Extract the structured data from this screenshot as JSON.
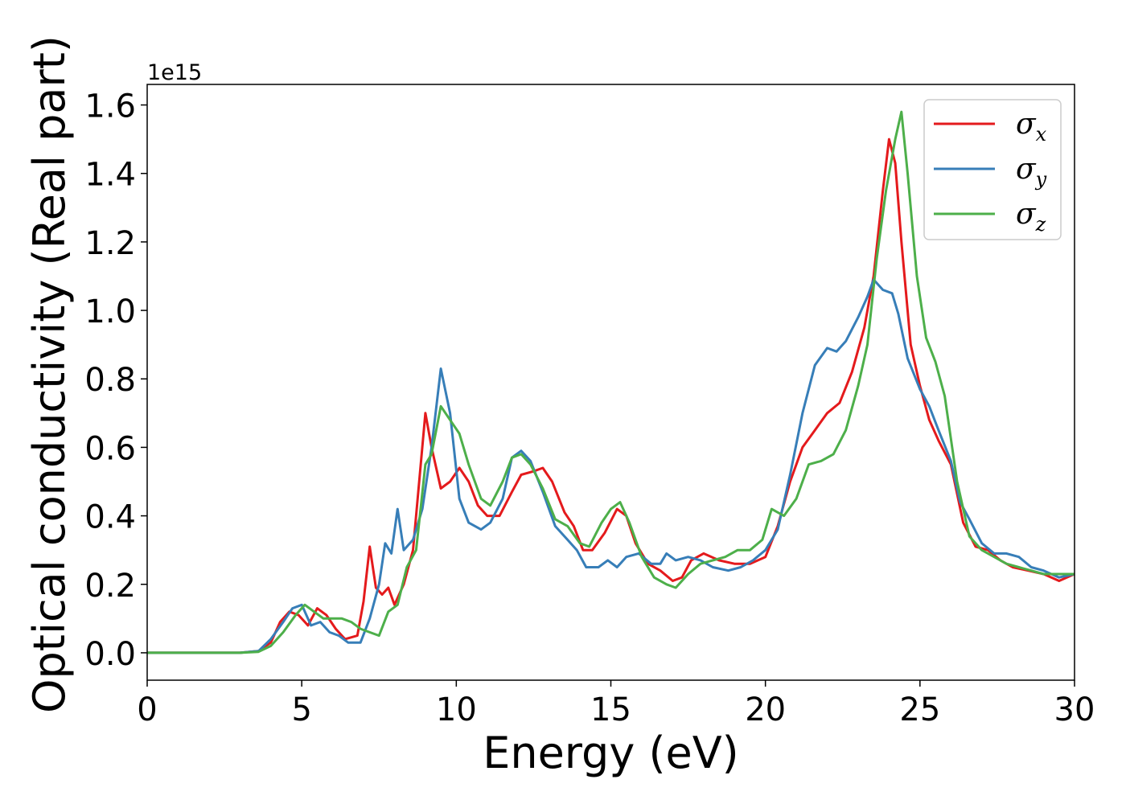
{
  "chart_data": {
    "type": "line",
    "title": "",
    "xlabel": "Energy (eV)",
    "ylabel": "Optical conductivity (Real part)",
    "y_offset_label": "1e15",
    "xlim": [
      0,
      30
    ],
    "ylim": [
      -0.08,
      1.66
    ],
    "x_ticks": [
      0,
      5,
      10,
      15,
      20,
      25,
      30
    ],
    "x_tick_labels": [
      "0",
      "5",
      "10",
      "15",
      "20",
      "25",
      "30"
    ],
    "y_ticks": [
      0.0,
      0.2,
      0.4,
      0.6,
      0.8,
      1.0,
      1.2,
      1.4,
      1.6
    ],
    "y_tick_labels": [
      "0.0",
      "0.2",
      "0.4",
      "0.6",
      "0.8",
      "1.0",
      "1.2",
      "1.4",
      "1.6"
    ],
    "grid": false,
    "legend_position": "top-right",
    "series": [
      {
        "name": "σx",
        "symbol": "σ",
        "subscript": "x",
        "color": "#e41a1c",
        "points": [
          [
            0,
            0
          ],
          [
            3,
            0
          ],
          [
            3.6,
            0.005
          ],
          [
            4,
            0.03
          ],
          [
            4.3,
            0.09
          ],
          [
            4.6,
            0.12
          ],
          [
            4.9,
            0.11
          ],
          [
            5.2,
            0.08
          ],
          [
            5.5,
            0.13
          ],
          [
            5.8,
            0.11
          ],
          [
            6.1,
            0.07
          ],
          [
            6.4,
            0.04
          ],
          [
            6.8,
            0.05
          ],
          [
            7.0,
            0.15
          ],
          [
            7.2,
            0.31
          ],
          [
            7.4,
            0.19
          ],
          [
            7.6,
            0.17
          ],
          [
            7.8,
            0.19
          ],
          [
            8.0,
            0.14
          ],
          [
            8.3,
            0.2
          ],
          [
            8.6,
            0.3
          ],
          [
            8.8,
            0.5
          ],
          [
            9.0,
            0.7
          ],
          [
            9.2,
            0.6
          ],
          [
            9.5,
            0.48
          ],
          [
            9.8,
            0.5
          ],
          [
            10.1,
            0.54
          ],
          [
            10.4,
            0.5
          ],
          [
            10.7,
            0.43
          ],
          [
            11.0,
            0.4
          ],
          [
            11.4,
            0.4
          ],
          [
            11.8,
            0.47
          ],
          [
            12.1,
            0.52
          ],
          [
            12.5,
            0.53
          ],
          [
            12.8,
            0.54
          ],
          [
            13.1,
            0.5
          ],
          [
            13.5,
            0.41
          ],
          [
            13.8,
            0.37
          ],
          [
            14.1,
            0.3
          ],
          [
            14.4,
            0.3
          ],
          [
            14.8,
            0.35
          ],
          [
            15.2,
            0.42
          ],
          [
            15.5,
            0.4
          ],
          [
            15.8,
            0.32
          ],
          [
            16.2,
            0.26
          ],
          [
            16.6,
            0.24
          ],
          [
            17.0,
            0.21
          ],
          [
            17.3,
            0.22
          ],
          [
            17.6,
            0.27
          ],
          [
            18.0,
            0.29
          ],
          [
            18.5,
            0.27
          ],
          [
            19.0,
            0.26
          ],
          [
            19.5,
            0.26
          ],
          [
            20.0,
            0.28
          ],
          [
            20.4,
            0.37
          ],
          [
            20.8,
            0.5
          ],
          [
            21.2,
            0.6
          ],
          [
            21.6,
            0.65
          ],
          [
            22.0,
            0.7
          ],
          [
            22.4,
            0.73
          ],
          [
            22.8,
            0.82
          ],
          [
            23.2,
            0.95
          ],
          [
            23.5,
            1.1
          ],
          [
            23.8,
            1.35
          ],
          [
            24.0,
            1.5
          ],
          [
            24.2,
            1.43
          ],
          [
            24.4,
            1.2
          ],
          [
            24.7,
            0.9
          ],
          [
            25.0,
            0.78
          ],
          [
            25.3,
            0.68
          ],
          [
            25.6,
            0.62
          ],
          [
            26.0,
            0.55
          ],
          [
            26.4,
            0.38
          ],
          [
            26.8,
            0.31
          ],
          [
            27.2,
            0.3
          ],
          [
            27.6,
            0.27
          ],
          [
            28.0,
            0.25
          ],
          [
            28.5,
            0.24
          ],
          [
            29.0,
            0.23
          ],
          [
            29.5,
            0.21
          ],
          [
            30.0,
            0.23
          ]
        ]
      },
      {
        "name": "σy",
        "symbol": "σ",
        "subscript": "y",
        "color": "#377eb8",
        "points": [
          [
            0,
            0
          ],
          [
            3,
            0
          ],
          [
            3.6,
            0.005
          ],
          [
            4,
            0.04
          ],
          [
            4.4,
            0.09
          ],
          [
            4.7,
            0.13
          ],
          [
            5.0,
            0.14
          ],
          [
            5.3,
            0.08
          ],
          [
            5.6,
            0.09
          ],
          [
            5.9,
            0.06
          ],
          [
            6.2,
            0.05
          ],
          [
            6.5,
            0.03
          ],
          [
            6.9,
            0.03
          ],
          [
            7.2,
            0.1
          ],
          [
            7.5,
            0.2
          ],
          [
            7.7,
            0.32
          ],
          [
            7.9,
            0.29
          ],
          [
            8.1,
            0.42
          ],
          [
            8.3,
            0.3
          ],
          [
            8.6,
            0.33
          ],
          [
            8.9,
            0.42
          ],
          [
            9.2,
            0.6
          ],
          [
            9.5,
            0.83
          ],
          [
            9.8,
            0.7
          ],
          [
            10.1,
            0.45
          ],
          [
            10.4,
            0.38
          ],
          [
            10.8,
            0.36
          ],
          [
            11.1,
            0.38
          ],
          [
            11.5,
            0.45
          ],
          [
            11.8,
            0.57
          ],
          [
            12.1,
            0.59
          ],
          [
            12.4,
            0.56
          ],
          [
            12.8,
            0.47
          ],
          [
            13.2,
            0.37
          ],
          [
            13.6,
            0.33
          ],
          [
            13.9,
            0.3
          ],
          [
            14.2,
            0.25
          ],
          [
            14.6,
            0.25
          ],
          [
            14.9,
            0.27
          ],
          [
            15.2,
            0.25
          ],
          [
            15.5,
            0.28
          ],
          [
            15.9,
            0.29
          ],
          [
            16.3,
            0.26
          ],
          [
            16.6,
            0.26
          ],
          [
            16.8,
            0.29
          ],
          [
            17.1,
            0.27
          ],
          [
            17.5,
            0.28
          ],
          [
            17.9,
            0.27
          ],
          [
            18.3,
            0.25
          ],
          [
            18.8,
            0.24
          ],
          [
            19.2,
            0.25
          ],
          [
            19.6,
            0.27
          ],
          [
            20.0,
            0.3
          ],
          [
            20.4,
            0.36
          ],
          [
            20.8,
            0.52
          ],
          [
            21.2,
            0.7
          ],
          [
            21.6,
            0.84
          ],
          [
            22.0,
            0.89
          ],
          [
            22.3,
            0.88
          ],
          [
            22.6,
            0.91
          ],
          [
            23.0,
            0.98
          ],
          [
            23.3,
            1.04
          ],
          [
            23.5,
            1.09
          ],
          [
            23.8,
            1.06
          ],
          [
            24.1,
            1.05
          ],
          [
            24.3,
            0.99
          ],
          [
            24.6,
            0.86
          ],
          [
            25.0,
            0.77
          ],
          [
            25.3,
            0.72
          ],
          [
            25.6,
            0.65
          ],
          [
            26.0,
            0.56
          ],
          [
            26.3,
            0.44
          ],
          [
            26.6,
            0.39
          ],
          [
            27.0,
            0.32
          ],
          [
            27.4,
            0.29
          ],
          [
            27.8,
            0.29
          ],
          [
            28.2,
            0.28
          ],
          [
            28.6,
            0.25
          ],
          [
            29.0,
            0.24
          ],
          [
            29.5,
            0.22
          ],
          [
            30.0,
            0.23
          ]
        ]
      },
      {
        "name": "σz",
        "symbol": "σ",
        "subscript": "z",
        "color": "#4daf4a",
        "points": [
          [
            0,
            0
          ],
          [
            3,
            0
          ],
          [
            3.6,
            0.003
          ],
          [
            4,
            0.02
          ],
          [
            4.4,
            0.06
          ],
          [
            4.8,
            0.11
          ],
          [
            5.1,
            0.14
          ],
          [
            5.4,
            0.12
          ],
          [
            5.7,
            0.1
          ],
          [
            6.0,
            0.1
          ],
          [
            6.3,
            0.1
          ],
          [
            6.6,
            0.09
          ],
          [
            6.9,
            0.07
          ],
          [
            7.2,
            0.06
          ],
          [
            7.5,
            0.05
          ],
          [
            7.8,
            0.12
          ],
          [
            8.1,
            0.14
          ],
          [
            8.4,
            0.25
          ],
          [
            8.7,
            0.3
          ],
          [
            9.0,
            0.55
          ],
          [
            9.2,
            0.58
          ],
          [
            9.5,
            0.72
          ],
          [
            9.8,
            0.68
          ],
          [
            10.1,
            0.64
          ],
          [
            10.4,
            0.55
          ],
          [
            10.8,
            0.45
          ],
          [
            11.1,
            0.43
          ],
          [
            11.5,
            0.5
          ],
          [
            11.8,
            0.57
          ],
          [
            12.1,
            0.58
          ],
          [
            12.4,
            0.55
          ],
          [
            12.8,
            0.48
          ],
          [
            13.2,
            0.39
          ],
          [
            13.6,
            0.37
          ],
          [
            14.0,
            0.32
          ],
          [
            14.3,
            0.31
          ],
          [
            14.7,
            0.38
          ],
          [
            15.0,
            0.42
          ],
          [
            15.3,
            0.44
          ],
          [
            15.6,
            0.38
          ],
          [
            16.0,
            0.28
          ],
          [
            16.4,
            0.22
          ],
          [
            16.8,
            0.2
          ],
          [
            17.1,
            0.19
          ],
          [
            17.5,
            0.23
          ],
          [
            17.9,
            0.26
          ],
          [
            18.3,
            0.27
          ],
          [
            18.7,
            0.28
          ],
          [
            19.1,
            0.3
          ],
          [
            19.5,
            0.3
          ],
          [
            19.9,
            0.33
          ],
          [
            20.2,
            0.42
          ],
          [
            20.6,
            0.4
          ],
          [
            21.0,
            0.45
          ],
          [
            21.4,
            0.55
          ],
          [
            21.8,
            0.56
          ],
          [
            22.2,
            0.58
          ],
          [
            22.6,
            0.65
          ],
          [
            23.0,
            0.78
          ],
          [
            23.3,
            0.9
          ],
          [
            23.6,
            1.15
          ],
          [
            23.9,
            1.35
          ],
          [
            24.2,
            1.5
          ],
          [
            24.4,
            1.58
          ],
          [
            24.6,
            1.4
          ],
          [
            24.9,
            1.1
          ],
          [
            25.2,
            0.92
          ],
          [
            25.5,
            0.85
          ],
          [
            25.8,
            0.75
          ],
          [
            26.2,
            0.5
          ],
          [
            26.6,
            0.34
          ],
          [
            27.0,
            0.3
          ],
          [
            27.4,
            0.28
          ],
          [
            27.8,
            0.26
          ],
          [
            28.2,
            0.25
          ],
          [
            28.6,
            0.24
          ],
          [
            29.0,
            0.23
          ],
          [
            29.5,
            0.23
          ],
          [
            30.0,
            0.23
          ]
        ]
      }
    ]
  }
}
